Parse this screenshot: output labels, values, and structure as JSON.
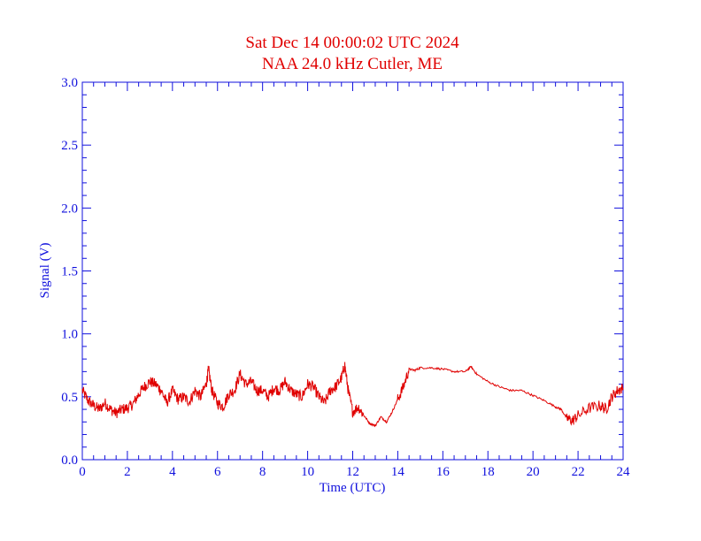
{
  "chart_data": {
    "type": "line",
    "title": "Sat Dec 14 00:00:02 UTC 2024",
    "subtitle": "NAA 24.0 kHz Cutler, ME",
    "xlabel": "Time (UTC)",
    "ylabel": "Signal (V)",
    "xlim": [
      0,
      24
    ],
    "ylim": [
      0.0,
      3.0
    ],
    "x_ticks": [
      "0",
      "2",
      "4",
      "6",
      "8",
      "10",
      "12",
      "14",
      "16",
      "18",
      "20",
      "22",
      "24"
    ],
    "y_ticks": [
      "0.0",
      "0.5",
      "1.0",
      "1.5",
      "2.0",
      "2.5",
      "3.0"
    ],
    "grid": false,
    "colors": {
      "axes": "#1010dd",
      "series": "#e00000",
      "title": "#e00000"
    },
    "series": [
      {
        "x": [
          0.0,
          0.25,
          0.5,
          0.75,
          1.0,
          1.25,
          1.5,
          1.75,
          2.0,
          2.25,
          2.5,
          2.75,
          3.0,
          3.25,
          3.5,
          3.75,
          4.0,
          4.25,
          4.5,
          4.75,
          5.0,
          5.25,
          5.5,
          5.6,
          5.75,
          6.0,
          6.25,
          6.5,
          6.75,
          7.0,
          7.25,
          7.5,
          7.75,
          8.0,
          8.25,
          8.5,
          8.75,
          9.0,
          9.25,
          9.5,
          9.75,
          10.0,
          10.25,
          10.5,
          10.75,
          11.0,
          11.25,
          11.5,
          11.65,
          11.8,
          12.0,
          12.25,
          12.5,
          12.75,
          13.0,
          13.25,
          13.5,
          13.75,
          14.0,
          14.25,
          14.5,
          14.75,
          15.0,
          15.5,
          16.0,
          16.5,
          17.0,
          17.25,
          17.5,
          18.0,
          18.5,
          19.0,
          19.5,
          20.0,
          20.5,
          21.0,
          21.25,
          21.5,
          21.75,
          22.0,
          22.5,
          23.0,
          23.25,
          23.5,
          23.75,
          24.0
        ],
        "y": [
          0.55,
          0.47,
          0.43,
          0.4,
          0.45,
          0.4,
          0.37,
          0.4,
          0.41,
          0.44,
          0.52,
          0.58,
          0.62,
          0.6,
          0.55,
          0.45,
          0.55,
          0.48,
          0.5,
          0.46,
          0.55,
          0.5,
          0.6,
          0.72,
          0.55,
          0.45,
          0.42,
          0.52,
          0.55,
          0.68,
          0.6,
          0.62,
          0.55,
          0.55,
          0.5,
          0.57,
          0.55,
          0.62,
          0.55,
          0.52,
          0.5,
          0.6,
          0.58,
          0.5,
          0.45,
          0.55,
          0.58,
          0.65,
          0.75,
          0.55,
          0.38,
          0.42,
          0.35,
          0.29,
          0.27,
          0.34,
          0.3,
          0.38,
          0.48,
          0.58,
          0.72,
          0.71,
          0.73,
          0.73,
          0.72,
          0.7,
          0.7,
          0.74,
          0.68,
          0.62,
          0.58,
          0.55,
          0.55,
          0.51,
          0.47,
          0.42,
          0.4,
          0.33,
          0.31,
          0.35,
          0.41,
          0.43,
          0.4,
          0.5,
          0.55,
          0.57
        ]
      }
    ]
  }
}
